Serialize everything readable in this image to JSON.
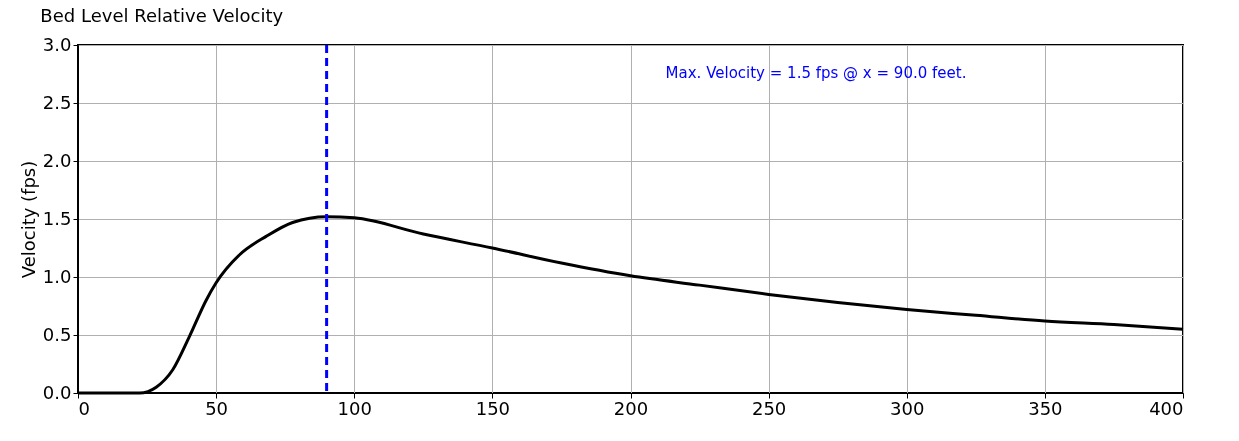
{
  "chart_data": {
    "type": "line",
    "title": "Bed Level Relative Velocity",
    "ylabel": "Velocity (fps)",
    "x": [
      0,
      10,
      20,
      22.3,
      28.3,
      34.3,
      40.4,
      46.4,
      50,
      58.4,
      68.1,
      77.7,
      90,
      100,
      125,
      150,
      175,
      200,
      225,
      250,
      275,
      300,
      325,
      350,
      375,
      400
    ],
    "series": [
      {
        "color": "#000000",
        "values": [
          0,
          0,
          0,
          0,
          0.05,
          0.2,
          0.49,
          0.8,
          0.95,
          1.19,
          1.35,
          1.47,
          1.52,
          1.51,
          1.37,
          1.25,
          1.12,
          1.01,
          0.93,
          0.85,
          0.78,
          0.72,
          0.67,
          0.62,
          0.59,
          0.55
        ]
      }
    ],
    "xlim": [
      0,
      400
    ],
    "xticks": [
      0,
      50,
      100,
      150,
      200,
      250,
      300,
      350,
      400
    ],
    "ylim": [
      0,
      3
    ],
    "yticks": [
      {
        "value": 0,
        "label": "0.0"
      },
      0.5,
      {
        "value": 1,
        "label": "1.0"
      },
      1.5,
      {
        "value": 2,
        "label": "2.0"
      },
      2.5,
      {
        "value": 3,
        "label": "3.0"
      }
    ],
    "grid": true,
    "ref_lines": [
      {
        "axis": "x",
        "value": 90,
        "color": "#0000ff",
        "line_style": "dashed"
      }
    ],
    "annotations": [
      "Max. Velocity =  1.5 fps @ x = 90.0 feet."
    ]
  }
}
